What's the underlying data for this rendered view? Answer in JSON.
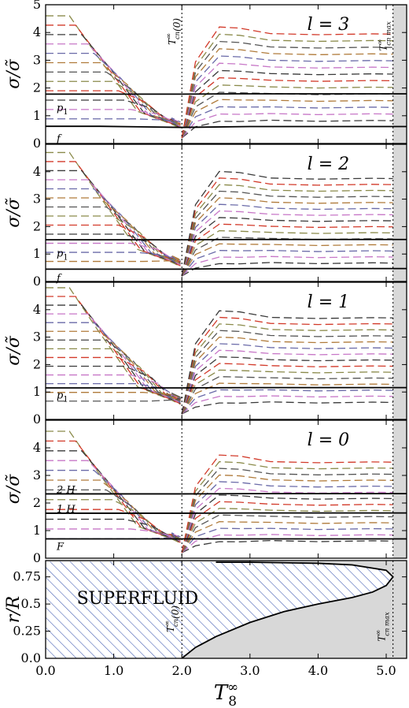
{
  "chart_data": {
    "type": "line",
    "xlabel": "T_8^∞",
    "xlim": [
      0.0,
      5.3
    ],
    "x_ticks": [
      "0.0",
      "1.0",
      "2.0",
      "3.0",
      "4.0",
      "5.0"
    ],
    "vlines": [
      {
        "x": 2.0,
        "label": "T_cn^∞(0)"
      },
      {
        "x": 5.1,
        "label": "T_cn max^∞"
      }
    ],
    "panels": [
      {
        "ylabel": "σ/σ̃",
        "ylim": [
          0,
          5
        ],
        "y_ticks": [
          "0",
          "1",
          "2",
          "3",
          "4",
          "5"
        ],
        "title": "l = 3",
        "mode_labels": [
          {
            "text": "p1",
            "y": 1.3
          },
          {
            "text": "f",
            "y": 0.2
          }
        ],
        "series": [
          {
            "mode": "f",
            "style": "solid",
            "x": [
              0.0,
              0.8,
              1.4,
              2.0,
              3.0,
              4.0,
              5.1,
              5.3
            ],
            "y": [
              0.62,
              0.62,
              0.6,
              0.58,
              0.61,
              0.61,
              0.61,
              0.61
            ]
          },
          {
            "mode": "p1",
            "style": "solid",
            "x": [
              0.0,
              1.0,
              2.0,
              2.8,
              4.0,
              5.1,
              5.3
            ],
            "y": [
              1.78,
              1.78,
              1.78,
              1.79,
              1.79,
              1.79,
              1.79
            ]
          }
        ],
        "dashed_modes": {
          "n_below": 12,
          "n_above": 14,
          "top_start": 4.6,
          "low_end": 0.55,
          "spacing_above": 0.24,
          "peak_overshoot": 0.3
        }
      },
      {
        "ylabel": "σ/σ̃",
        "ylim": [
          0,
          5
        ],
        "y_ticks": [
          "0",
          "1",
          "2",
          "3",
          "4"
        ],
        "title": "l = 2",
        "mode_labels": [
          {
            "text": "p1",
            "y": 1.05
          },
          {
            "text": "f",
            "y": 0.15
          }
        ],
        "series": [
          {
            "mode": "f",
            "style": "solid",
            "x": [
              0.0,
              1.0,
              2.0,
              3.0,
              4.0,
              5.1,
              5.3
            ],
            "y": [
              0.45,
              0.45,
              0.45,
              0.47,
              0.47,
              0.47,
              0.47
            ]
          },
          {
            "mode": "p1",
            "style": "solid",
            "x": [
              0.0,
              1.0,
              2.0,
              3.0,
              4.0,
              5.1,
              5.3
            ],
            "y": [
              1.52,
              1.52,
              1.52,
              1.53,
              1.53,
              1.53,
              1.53
            ]
          }
        ],
        "dashed_modes": {
          "n_below": 13,
          "n_above": 15,
          "top_start": 4.7,
          "low_end": 0.4,
          "spacing_above": 0.22,
          "peak_overshoot": 0.3
        }
      },
      {
        "ylabel": "σ/σ̃",
        "ylim": [
          0,
          5
        ],
        "y_ticks": [
          "0",
          "1",
          "2",
          "3",
          "4"
        ],
        "title": "l = 1",
        "mode_labels": [
          {
            "text": "p1",
            "y": 0.9
          }
        ],
        "series": [
          {
            "mode": "p1",
            "style": "solid",
            "x": [
              0.0,
              1.0,
              2.0,
              3.0,
              4.0,
              5.1,
              5.3
            ],
            "y": [
              1.15,
              1.15,
              1.15,
              1.16,
              1.16,
              1.16,
              1.16
            ]
          }
        ],
        "dashed_modes": {
          "n_below": 14,
          "n_above": 15,
          "top_start": 4.8,
          "low_end": 0.35,
          "spacing_above": 0.22,
          "peak_overshoot": 0.3
        }
      },
      {
        "ylabel": "σ/σ̃",
        "ylim": [
          0,
          5
        ],
        "y_ticks": [
          "0",
          "1",
          "2",
          "3",
          "4"
        ],
        "title": "l = 0",
        "mode_labels": [
          {
            "text": "2 H",
            "y": 2.5
          },
          {
            "text": "1 H",
            "y": 1.8
          },
          {
            "text": "F",
            "y": 0.45
          }
        ],
        "series": [
          {
            "mode": "F",
            "style": "solid",
            "x": [
              0.0,
              1.0,
              2.0,
              3.0,
              4.0,
              5.1,
              5.3
            ],
            "y": [
              0.7,
              0.7,
              0.7,
              0.7,
              0.7,
              0.7,
              0.7
            ]
          },
          {
            "mode": "1H",
            "style": "solid",
            "x": [
              0.0,
              1.0,
              2.0,
              3.0,
              4.0,
              5.1,
              5.3
            ],
            "y": [
              1.63,
              1.63,
              1.63,
              1.64,
              1.64,
              1.64,
              1.64
            ]
          },
          {
            "mode": "2H",
            "style": "solid",
            "x": [
              0.0,
              1.0,
              2.0,
              3.0,
              4.0,
              5.1,
              5.3
            ],
            "y": [
              2.33,
              2.33,
              2.33,
              2.34,
              2.34,
              2.34,
              2.34
            ]
          }
        ],
        "dashed_modes": {
          "n_below": 12,
          "n_above": 14,
          "top_start": 4.6,
          "low_end": 0.35,
          "spacing_above": 0.22,
          "peak_overshoot": 0.3
        }
      },
      {
        "ylabel": "r/R",
        "ylim": [
          0,
          0.9
        ],
        "y_ticks": [
          "0.0",
          "0.25",
          "0.5",
          "0.75"
        ],
        "region_label": "SUPERFLUID",
        "boundary": {
          "x": [
            2.0,
            2.2,
            2.5,
            3.0,
            3.5,
            4.0,
            4.5,
            4.8,
            5.0,
            5.1,
            5.0,
            4.5,
            4.0,
            3.5,
            3.0,
            2.5,
            2.0,
            1.0,
            0.0
          ],
          "y": [
            0.0,
            0.1,
            0.2,
            0.33,
            0.43,
            0.5,
            0.56,
            0.61,
            0.67,
            0.75,
            0.81,
            0.86,
            0.875,
            0.88,
            0.885,
            0.885,
            0.89,
            0.89,
            0.89
          ]
        }
      }
    ],
    "dash_palette": [
      "#8a8a4a",
      "#d23a2a",
      "#3a3a3a",
      "#c777c7",
      "#6a6aa8",
      "#b07b3b",
      "#555555"
    ],
    "shade_color": "#d8d8d8",
    "hatch_color": "#3a55b0"
  }
}
